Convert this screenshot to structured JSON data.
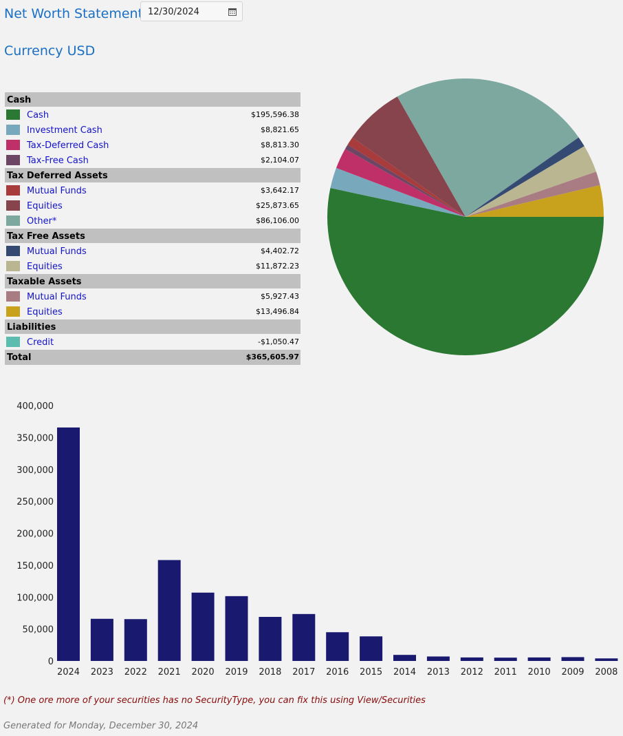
{
  "header": {
    "title": "Net Worth Statement",
    "date_value": "12/30/2024",
    "currency": "Currency USD"
  },
  "table": {
    "groups": [
      {
        "heading": "Cash",
        "items": [
          {
            "label": "Cash",
            "value": "$195,596.38",
            "color": "#2a7832"
          },
          {
            "label": "Investment Cash",
            "value": "$8,821.65",
            "color": "#78a8bc"
          },
          {
            "label": "Tax-Deferred Cash",
            "value": "$8,813.30",
            "color": "#c03068"
          },
          {
            "label": "Tax-Free Cash",
            "value": "$2,104.07",
            "color": "#6c4664"
          }
        ]
      },
      {
        "heading": "Tax Deferred Assets",
        "items": [
          {
            "label": "Mutual Funds",
            "value": "$3,642.17",
            "color": "#a83c3c"
          },
          {
            "label": "Equities",
            "value": "$25,873.65",
            "color": "#88444c"
          },
          {
            "label": "Other*",
            "value": "$86,106.00",
            "color": "#7ca8a0"
          }
        ]
      },
      {
        "heading": "Tax Free Assets",
        "items": [
          {
            "label": "Mutual Funds",
            "value": "$4,402.72",
            "color": "#344a72"
          },
          {
            "label": "Equities",
            "value": "$11,872.23",
            "color": "#bab692"
          }
        ]
      },
      {
        "heading": "Taxable Assets",
        "items": [
          {
            "label": "Mutual Funds",
            "value": "$5,927.43",
            "color": "#a87c82"
          },
          {
            "label": "Equities",
            "value": "$13,496.84",
            "color": "#c8a21c"
          }
        ]
      },
      {
        "heading": "Liabilities",
        "items": [
          {
            "label": "Credit",
            "value": "-$1,050.47",
            "color": "#5cbcb0"
          }
        ]
      }
    ],
    "total_label": "Total",
    "total_value": "$365,605.97"
  },
  "chart_data": [
    {
      "type": "pie",
      "slices": [
        {
          "name": "Cash",
          "value": 195596.38,
          "color": "#2a7832"
        },
        {
          "name": "Investment Cash",
          "value": 8821.65,
          "color": "#78a8bc"
        },
        {
          "name": "Tax-Deferred Cash",
          "value": 8813.3,
          "color": "#c03068"
        },
        {
          "name": "Tax-Free Cash",
          "value": 2104.07,
          "color": "#6c4664"
        },
        {
          "name": "Mutual Funds",
          "value": 3642.17,
          "color": "#a83c3c"
        },
        {
          "name": "Equities",
          "value": 25873.65,
          "color": "#88444c"
        },
        {
          "name": "Other*",
          "value": 86106.0,
          "color": "#7ca8a0"
        },
        {
          "name": "Mutual Funds",
          "value": 4402.72,
          "color": "#344a72"
        },
        {
          "name": "Equities",
          "value": 11872.23,
          "color": "#bab692"
        },
        {
          "name": "Mutual Funds",
          "value": 5927.43,
          "color": "#a87c82"
        },
        {
          "name": "Equities",
          "value": 13496.84,
          "color": "#c8a21c"
        }
      ]
    },
    {
      "type": "bar",
      "categories": [
        "2024",
        "2023",
        "2022",
        "2021",
        "2020",
        "2019",
        "2018",
        "2017",
        "2016",
        "2015",
        "2014",
        "2013",
        "2012",
        "2011",
        "2010",
        "2009",
        "2008"
      ],
      "values": [
        365606,
        66000,
        65500,
        158000,
        107000,
        101500,
        69000,
        73500,
        45000,
        38500,
        9500,
        7000,
        5500,
        5200,
        5500,
        6000,
        4000
      ],
      "ylim": [
        0,
        400000
      ],
      "yticks": [
        "0",
        "50,000",
        "100,000",
        "150,000",
        "200,000",
        "250,000",
        "300,000",
        "350,000",
        "400,000"
      ],
      "bar_color": "#191970",
      "grid": false
    }
  ],
  "footer": {
    "note": "(*) One ore more of your securities has no SecurityType, you can fix this using View/Securities",
    "generated": "Generated for Monday, December 30, 2024"
  }
}
